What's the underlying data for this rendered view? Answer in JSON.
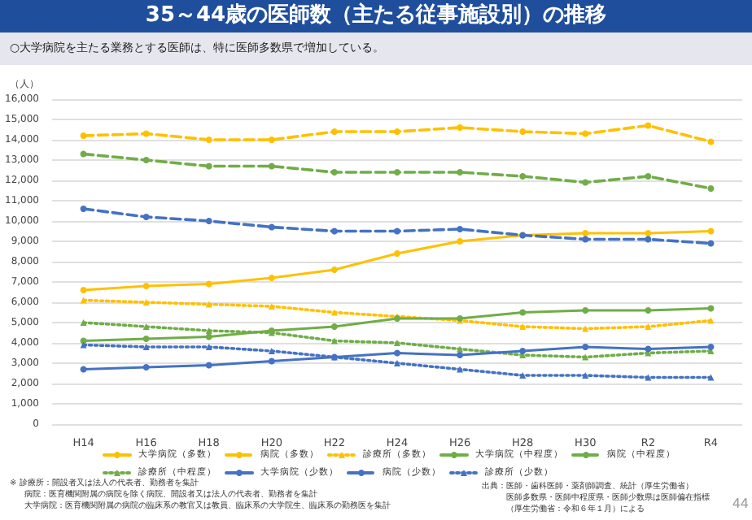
{
  "chart_data": {
    "type": "line",
    "title": "35～44歳の医師数（主たる従事施設別）の推移",
    "subtitle": "○大学病院を主たる業務とする医師は、特に医師多数県で増加している。",
    "ylabel": "（人）",
    "categories": [
      "H14",
      "H16",
      "H18",
      "H20",
      "H22",
      "H24",
      "H26",
      "H28",
      "H30",
      "R2",
      "R4"
    ],
    "ylim": [
      0,
      16000
    ],
    "yticks": [
      {
        "value": 0,
        "label": "0"
      },
      {
        "value": 1000,
        "label": "1,000"
      },
      {
        "value": 2000,
        "label": "2,000"
      },
      {
        "value": 3000,
        "label": "3,000"
      },
      {
        "value": 4000,
        "label": "4,000"
      },
      {
        "value": 5000,
        "label": "5,000"
      },
      {
        "value": 6000,
        "label": "6,000"
      },
      {
        "value": 7000,
        "label": "7,000"
      },
      {
        "value": 8000,
        "label": "8,000"
      },
      {
        "value": 9000,
        "label": "9,000"
      },
      {
        "value": 10000,
        "label": "10,000"
      },
      {
        "value": 11000,
        "label": "11,000"
      },
      {
        "value": 12000,
        "label": "12,000"
      },
      {
        "value": 13000,
        "label": "13,000"
      },
      {
        "value": 14000,
        "label": "14,000"
      },
      {
        "value": 15000,
        "label": "15,000"
      },
      {
        "value": 16000,
        "label": "16,000"
      }
    ],
    "grid": "y",
    "legend": "bottom",
    "series": [
      {
        "name": "大学病院（多数）",
        "color": "#ffc000",
        "line_style": "solid",
        "marker": "circle",
        "values": [
          6600,
          6800,
          6900,
          7200,
          7600,
          8400,
          9000,
          9300,
          9400,
          9400,
          9500
        ]
      },
      {
        "name": "病院（多数）",
        "color": "#ffc000",
        "line_style": "dashed",
        "marker": "circle",
        "values": [
          14200,
          14300,
          14000,
          14000,
          14400,
          14400,
          14600,
          14400,
          14300,
          14700,
          13900
        ]
      },
      {
        "name": "診療所（多数）",
        "color": "#ffc000",
        "line_style": "dotted",
        "marker": "triangle",
        "values": [
          6100,
          6000,
          5900,
          5800,
          5500,
          5300,
          5100,
          4800,
          4700,
          4800,
          5100
        ]
      },
      {
        "name": "大学病院（中程度）",
        "color": "#70ad47",
        "line_style": "solid",
        "marker": "circle",
        "values": [
          4100,
          4200,
          4300,
          4600,
          4800,
          5200,
          5200,
          5500,
          5600,
          5600,
          5700
        ]
      },
      {
        "name": "病院（中程度）",
        "color": "#70ad47",
        "line_style": "dashed",
        "marker": "circle",
        "values": [
          13300,
          13000,
          12700,
          12700,
          12400,
          12400,
          12400,
          12200,
          11900,
          12200,
          11600
        ]
      },
      {
        "name": "診療所（中程度）",
        "color": "#70ad47",
        "line_style": "dotted",
        "marker": "triangle",
        "values": [
          5000,
          4800,
          4600,
          4500,
          4100,
          4000,
          3700,
          3400,
          3300,
          3500,
          3600
        ]
      },
      {
        "name": "大学病院（少数）",
        "color": "#4472c4",
        "line_style": "solid",
        "marker": "circle",
        "values": [
          2700,
          2800,
          2900,
          3100,
          3300,
          3500,
          3400,
          3600,
          3800,
          3700,
          3800
        ]
      },
      {
        "name": "病院（少数）",
        "color": "#4472c4",
        "line_style": "dashed",
        "marker": "circle",
        "values": [
          10600,
          10200,
          10000,
          9700,
          9500,
          9500,
          9600,
          9300,
          9100,
          9100,
          8900
        ]
      },
      {
        "name": "診療所（少数）",
        "color": "#4472c4",
        "line_style": "dotted",
        "marker": "triangle",
        "values": [
          3900,
          3800,
          3800,
          3600,
          3300,
          3000,
          2700,
          2400,
          2400,
          2300,
          2300
        ]
      }
    ],
    "annotations": [
      "※ 診療所：開設者又は法人の代表者、勤務者を集計",
      "病院：医育機関附属の病院を除く病院、開設者又は法人の代表者、勤務者を集計",
      "大学病院：医育機関附属の病院の臨床系の教官又は教員、臨床系の大学院生、臨床系の勤務医を集計",
      "出典：医師・歯科医師・薬剤師調査、統計（厚生労働省）",
      "医師多数県・医師中程度県・医師少数県は医師偏在指標",
      "（厚生労働省：令和６年１月）による",
      "44"
    ]
  }
}
